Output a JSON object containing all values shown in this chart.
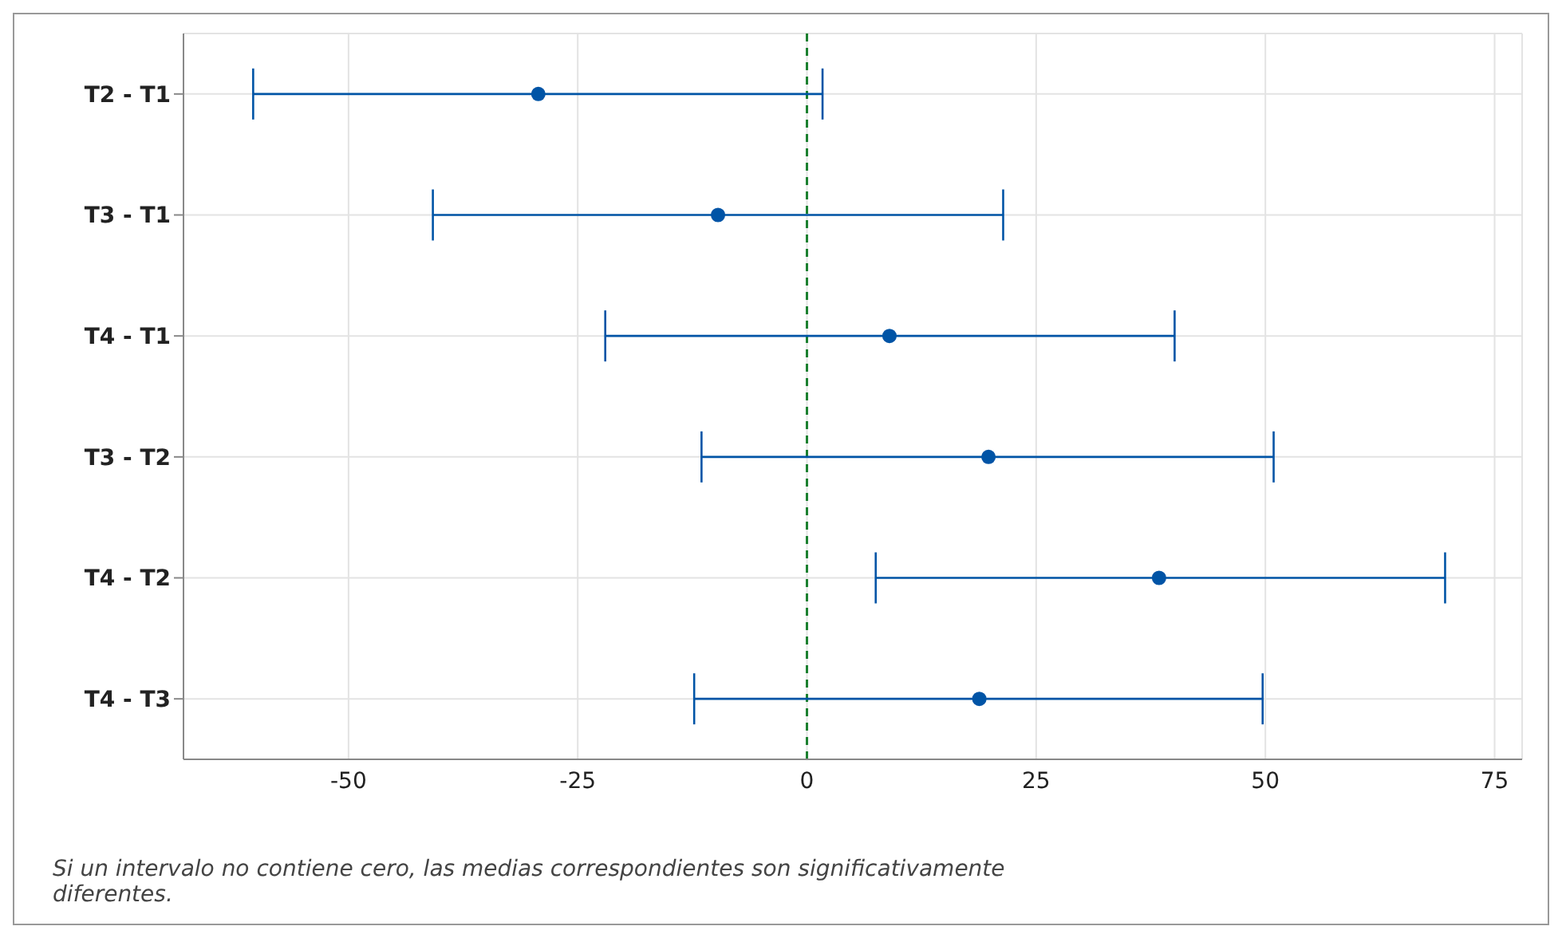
{
  "chart_data": {
    "type": "scatter",
    "orientation": "horizontal",
    "categories": [
      "T2 - T1",
      "T3 - T1",
      "T4 - T1",
      "T3 - T2",
      "T4 - T2",
      "T4 - T3"
    ],
    "values": [
      -29.3,
      -9.7,
      9.0,
      19.8,
      38.4,
      18.8
    ],
    "errors": [
      [
        -60.4,
        1.7
      ],
      [
        -40.8,
        21.4
      ],
      [
        -22.0,
        40.1
      ],
      [
        -11.5,
        50.9
      ],
      [
        7.5,
        69.6
      ],
      [
        -12.3,
        49.7
      ]
    ],
    "color": "#0054a6",
    "xlim": [
      -68,
      78
    ],
    "xticks": [
      -50,
      -25,
      0,
      25,
      50,
      75
    ],
    "grid": true,
    "marker": "circle",
    "ref_lines": [
      {
        "axis": "x",
        "value": 0,
        "color": "#1a7f2e",
        "line_style": "dashed"
      }
    ],
    "annotations": [
      "Si un intervalo no contiene cero, las medias correspondientes son significativamente diferentes."
    ]
  }
}
